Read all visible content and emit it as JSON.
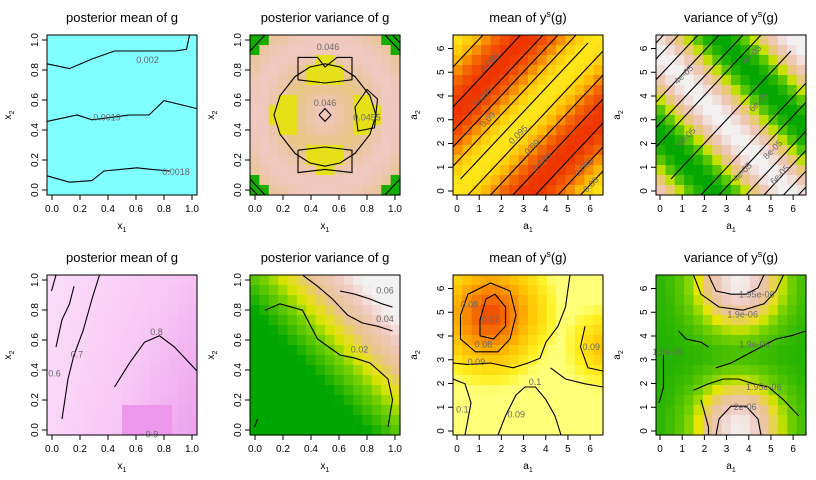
{
  "chart_data": [
    {
      "type": "heatmap",
      "title": "posterior mean of g",
      "xlabel": "x",
      "xlabel_sub": "1",
      "ylabel": "x",
      "ylabel_sub": "2",
      "xlim": [
        0,
        1
      ],
      "ylim": [
        0,
        1
      ],
      "xticks": [
        "0.0",
        "0.2",
        "0.4",
        "0.6",
        "0.8",
        "1.0"
      ],
      "yticks": [
        "0.0",
        "0.2",
        "0.4",
        "0.6",
        "0.8",
        "1.0"
      ],
      "palette": "cyan",
      "contour_labels": [
        {
          "text": "0.002",
          "x": 0.67,
          "y": 0.84
        },
        {
          "text": "0.0019",
          "x": 0.4,
          "y": 0.48
        },
        {
          "text": "0.0018",
          "x": 0.86,
          "y": 0.14
        }
      ]
    },
    {
      "type": "heatmap",
      "title": "posterior variance of g",
      "xlabel": "x",
      "xlabel_sub": "1",
      "ylabel": "x",
      "ylabel_sub": "2",
      "xlim": [
        0,
        1
      ],
      "ylim": [
        0,
        1
      ],
      "xticks": [
        "0.0",
        "0.2",
        "0.4",
        "0.6",
        "0.8",
        "1.0"
      ],
      "yticks": [
        "0.0",
        "0.2",
        "0.4",
        "0.6",
        "0.8",
        "1.0"
      ],
      "palette": "terrain",
      "contour_labels": [
        {
          "text": "0.046",
          "x": 0.52,
          "y": 0.92
        },
        {
          "text": "0.046",
          "x": 0.5,
          "y": 0.57
        },
        {
          "text": "0.0455",
          "x": 0.78,
          "y": 0.48
        }
      ]
    },
    {
      "type": "heatmap",
      "title": "mean of y",
      "title_sup": "s",
      "title_suffix": "(g)",
      "xlabel": "a",
      "xlabel_sub": "1",
      "ylabel": "a",
      "ylabel_sub": "2",
      "xlim": [
        0,
        6.4
      ],
      "ylim": [
        0,
        6.4
      ],
      "xticks": [
        "0",
        "1",
        "2",
        "3",
        "4",
        "5",
        "6"
      ],
      "yticks": [
        "0",
        "1",
        "2",
        "3",
        "4",
        "5",
        "6"
      ],
      "palette": "heat",
      "contour_labels": [
        {
          "text": "0.085",
          "x": 1.6,
          "y": 5.3
        },
        {
          "text": "0.095",
          "x": 1.3,
          "y": 3.9
        },
        {
          "text": "0.09",
          "x": 1.5,
          "y": 3.0
        },
        {
          "text": "0.095",
          "x": 2.8,
          "y": 2.4
        },
        {
          "text": "0.09",
          "x": 3.4,
          "y": 1.9
        },
        {
          "text": "0.085",
          "x": 3.8,
          "y": 1.3
        },
        {
          "text": "0.085",
          "x": 5.6,
          "y": 1.1
        },
        {
          "text": "0.08",
          "x": 5.9,
          "y": 0.4
        }
      ]
    },
    {
      "type": "heatmap",
      "title": "variance of y",
      "title_sup": "s",
      "title_suffix": "(g)",
      "xlabel": "a",
      "xlabel_sub": "1",
      "ylabel": "a",
      "ylabel_sub": "2",
      "xlim": [
        0,
        6.4
      ],
      "ylim": [
        0,
        6.4
      ],
      "xticks": [
        "0",
        "1",
        "2",
        "3",
        "4",
        "5",
        "6"
      ],
      "yticks": [
        "0",
        "1",
        "2",
        "3",
        "4",
        "5",
        "6"
      ],
      "palette": "terrain",
      "contour_labels": [
        {
          "text": "4e-05",
          "x": 1.2,
          "y": 4.8
        },
        {
          "text": "4e-05",
          "x": 4.1,
          "y": 5.6
        },
        {
          "text": "6e-05",
          "x": 1.3,
          "y": 2.3
        },
        {
          "text": "6e-05",
          "x": 4.4,
          "y": 3.7
        },
        {
          "text": "4e-05",
          "x": 3.7,
          "y": 0.9
        },
        {
          "text": "8e-05",
          "x": 5.0,
          "y": 1.8
        },
        {
          "text": "6e-05",
          "x": 5.3,
          "y": 0.8
        }
      ]
    },
    {
      "type": "heatmap",
      "title": "posterior mean of g",
      "xlabel": "x",
      "xlabel_sub": "1",
      "ylabel": "x",
      "ylabel_sub": "2",
      "xlim": [
        0,
        1
      ],
      "ylim": [
        0,
        1
      ],
      "xticks": [
        "0.0",
        "0.2",
        "0.4",
        "0.6",
        "0.8",
        "1.0"
      ],
      "yticks": [
        "0.0",
        "0.2",
        "0.4",
        "0.6",
        "0.8",
        "1.0"
      ],
      "palette": "cyan-magenta",
      "contour_labels": [
        {
          "text": "0.6",
          "x": 0.05,
          "y": 0.38
        },
        {
          "text": "0.7",
          "x": 0.2,
          "y": 0.5
        },
        {
          "text": "0.8",
          "x": 0.73,
          "y": 0.64
        },
        {
          "text": "0.9",
          "x": 0.7,
          "y": 0.0
        }
      ]
    },
    {
      "type": "heatmap",
      "title": "posterior variance of g",
      "xlabel": "x",
      "xlabel_sub": "1",
      "ylabel": "x",
      "ylabel_sub": "2",
      "xlim": [
        0,
        1
      ],
      "ylim": [
        0,
        1
      ],
      "xticks": [
        "0.0",
        "0.2",
        "0.4",
        "0.6",
        "0.8",
        "1.0"
      ],
      "yticks": [
        "0.0",
        "0.2",
        "0.4",
        "0.6",
        "0.8",
        "1.0"
      ],
      "palette": "terrain",
      "contour_labels": [
        {
          "text": "0.06",
          "x": 0.9,
          "y": 0.9
        },
        {
          "text": "0.04",
          "x": 0.9,
          "y": 0.72
        },
        {
          "text": "0.02",
          "x": 0.73,
          "y": 0.53
        }
      ]
    },
    {
      "type": "heatmap",
      "title": "mean of y",
      "title_sup": "s",
      "title_suffix": "(g)",
      "xlabel": "a",
      "xlabel_sub": "1",
      "ylabel": "a",
      "ylabel_sub": "2",
      "xlim": [
        0,
        6.4
      ],
      "ylim": [
        0,
        6.4
      ],
      "xticks": [
        "0",
        "1",
        "2",
        "3",
        "4",
        "5",
        "6"
      ],
      "yticks": [
        "0",
        "1",
        "2",
        "3",
        "4",
        "5",
        "6"
      ],
      "palette": "heat",
      "contour_labels": [
        {
          "text": "0.08",
          "x": 0.7,
          "y": 5.2
        },
        {
          "text": "0.07",
          "x": 1.6,
          "y": 4.6
        },
        {
          "text": "0.08",
          "x": 1.3,
          "y": 3.6
        },
        {
          "text": "0.09",
          "x": 1.0,
          "y": 2.9
        },
        {
          "text": "0.1",
          "x": 3.5,
          "y": 2.1
        },
        {
          "text": "0.1",
          "x": 0.4,
          "y": 1.0
        },
        {
          "text": "0.09",
          "x": 2.7,
          "y": 0.8
        },
        {
          "text": "0.09",
          "x": 5.9,
          "y": 3.5
        }
      ]
    },
    {
      "type": "heatmap",
      "title": "variance of y",
      "title_sup": "s",
      "title_suffix": "(g)",
      "xlabel": "a",
      "xlabel_sub": "1",
      "ylabel": "a",
      "ylabel_sub": "2",
      "xlim": [
        0,
        6.4
      ],
      "ylim": [
        0,
        6.4
      ],
      "xticks": [
        "0",
        "1",
        "2",
        "3",
        "4",
        "5",
        "6"
      ],
      "yticks": [
        "0",
        "1",
        "2",
        "3",
        "4",
        "5",
        "6"
      ],
      "palette": "terrain",
      "contour_labels": [
        {
          "text": "1.95e-06",
          "x": 4.3,
          "y": 5.6
        },
        {
          "text": "1.9e-06",
          "x": 3.7,
          "y": 4.8
        },
        {
          "text": "1.9e-06",
          "x": 0.5,
          "y": 3.3
        },
        {
          "text": "1.9e-06",
          "x": 4.2,
          "y": 3.6
        },
        {
          "text": "1.95e-06",
          "x": 4.6,
          "y": 1.9
        },
        {
          "text": "2e-06",
          "x": 3.8,
          "y": 1.1
        }
      ]
    }
  ]
}
